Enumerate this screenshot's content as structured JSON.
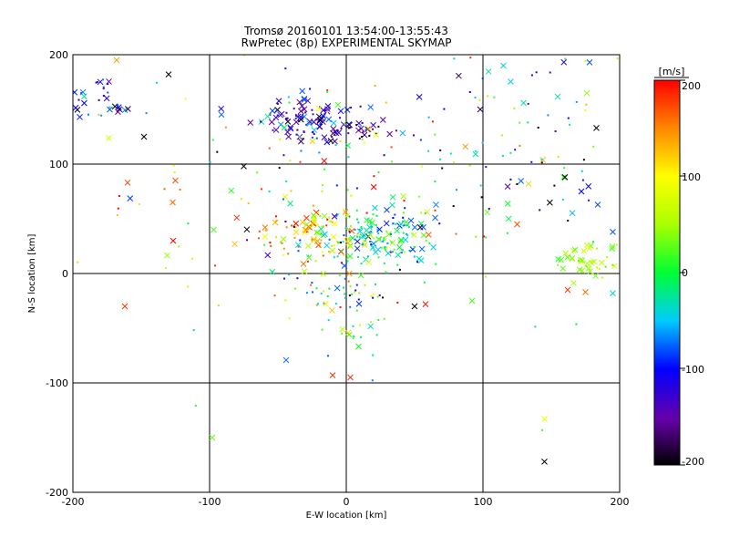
{
  "chart_data": {
    "type": "scatter",
    "title": "Tromsø 20160101 13:54:00-13:55:43",
    "subtitle": "RwPretec (8p) EXPERIMENTAL SKYMAP",
    "xlabel": "E-W location [km]",
    "ylabel": "N-S location [km]",
    "xlim": [
      -200,
      200
    ],
    "ylim": [
      -200,
      200
    ],
    "x_ticks": [
      "-200",
      "-100",
      "0",
      "100",
      "200"
    ],
    "y_ticks": [
      "-200",
      "-100",
      "0",
      "100",
      "200"
    ],
    "grid": true,
    "colorbar": {
      "label": "[m/s]",
      "range": [
        -200,
        200
      ],
      "ticks": [
        "200",
        "100",
        "0",
        "-100",
        "-200"
      ]
    },
    "marker_types": [
      "x",
      "dot"
    ],
    "clusters": [
      {
        "x": -180,
        "y": 160,
        "sx": 14,
        "sy": 10,
        "v": -110,
        "sv": 40,
        "n": 35,
        "px": 0.6
      },
      {
        "x": -28,
        "y": 140,
        "sx": 22,
        "sy": 10,
        "v": -120,
        "sv": 40,
        "n": 110,
        "px": 0.5
      },
      {
        "x": 5,
        "y": 130,
        "sx": 15,
        "sy": 6,
        "v": -160,
        "sv": 30,
        "n": 25,
        "px": 0.3
      },
      {
        "x": -28,
        "y": 38,
        "sx": 18,
        "sy": 12,
        "v": 130,
        "sv": 45,
        "n": 70,
        "px": 0.55
      },
      {
        "x": 20,
        "y": 35,
        "sx": 22,
        "sy": 14,
        "v": -15,
        "sv": 55,
        "n": 170,
        "px": 0.35
      },
      {
        "x": 0,
        "y": -15,
        "sx": 22,
        "sy": 28,
        "v": 0,
        "sv": 80,
        "n": 90,
        "px": 0.15
      },
      {
        "x": 178,
        "y": 10,
        "sx": 14,
        "sy": 8,
        "v": 45,
        "sv": 25,
        "n": 45,
        "px": 0.6
      },
      {
        "x": -75,
        "y": 60,
        "sx": 55,
        "sy": 45,
        "v": 120,
        "sv": 90,
        "n": 50,
        "px": 0.25
      },
      {
        "x": 60,
        "y": 100,
        "sx": 60,
        "sy": 50,
        "v": -20,
        "sv": 110,
        "n": 90,
        "px": 0.2
      },
      {
        "x": 0,
        "y": 80,
        "sx": 120,
        "sy": 90,
        "v": 0,
        "sv": 120,
        "n": 70,
        "px": 0.3
      },
      {
        "x": 150,
        "y": 150,
        "sx": 45,
        "sy": 40,
        "v": -60,
        "sv": 100,
        "n": 30,
        "px": 0.4
      },
      {
        "x": 160,
        "y": 60,
        "sx": 30,
        "sy": 20,
        "v": -80,
        "sv": 80,
        "n": 15,
        "px": 0.5
      }
    ],
    "points": [
      {
        "x": 145,
        "y": -172,
        "v": -200,
        "m": "x"
      },
      {
        "x": 145,
        "y": -133,
        "v": 90,
        "m": "x"
      },
      {
        "x": -98,
        "y": -150,
        "v": 30,
        "m": "x"
      },
      {
        "x": -162,
        "y": -30,
        "v": 180,
        "m": "x"
      },
      {
        "x": -10,
        "y": -93,
        "v": 180,
        "m": "x"
      },
      {
        "x": 3,
        "y": -95,
        "v": 180,
        "m": "x"
      },
      {
        "x": -160,
        "y": 83,
        "v": 170,
        "m": "x"
      },
      {
        "x": -127,
        "y": 65,
        "v": 160,
        "m": "x"
      },
      {
        "x": -75,
        "y": 98,
        "v": -200,
        "m": "x"
      },
      {
        "x": 125,
        "y": 45,
        "v": 170,
        "m": "x"
      },
      {
        "x": 160,
        "y": 88,
        "v": -200,
        "m": "x"
      },
      {
        "x": 172,
        "y": 75,
        "v": -100,
        "m": "x"
      },
      {
        "x": 195,
        "y": 38,
        "v": -80,
        "m": "x"
      },
      {
        "x": 178,
        "y": 193,
        "v": -80,
        "m": "x"
      },
      {
        "x": -125,
        "y": 85,
        "v": 170,
        "m": "x"
      },
      {
        "x": -168,
        "y": 195,
        "v": 140,
        "m": "x"
      },
      {
        "x": -130,
        "y": 182,
        "v": -200,
        "m": "x"
      },
      {
        "x": 50,
        "y": -30,
        "v": -200,
        "m": "x"
      },
      {
        "x": 58,
        "y": -28,
        "v": 190,
        "m": "x"
      },
      {
        "x": 92,
        "y": -25,
        "v": 20,
        "m": "x"
      },
      {
        "x": 162,
        "y": -15,
        "v": 180,
        "m": "x"
      },
      {
        "x": 175,
        "y": -17,
        "v": 160,
        "m": "x"
      },
      {
        "x": 195,
        "y": -18,
        "v": -40,
        "m": "x"
      },
      {
        "x": 115,
        "y": 190,
        "v": -40,
        "m": "x"
      },
      {
        "x": -148,
        "y": 125,
        "v": -200,
        "m": "x"
      },
      {
        "x": -195,
        "y": 143,
        "v": -90,
        "m": "x"
      },
      {
        "x": 98,
        "y": 150,
        "v": -180,
        "m": "x"
      },
      {
        "x": 183,
        "y": 133,
        "v": -200,
        "m": "x"
      }
    ]
  }
}
